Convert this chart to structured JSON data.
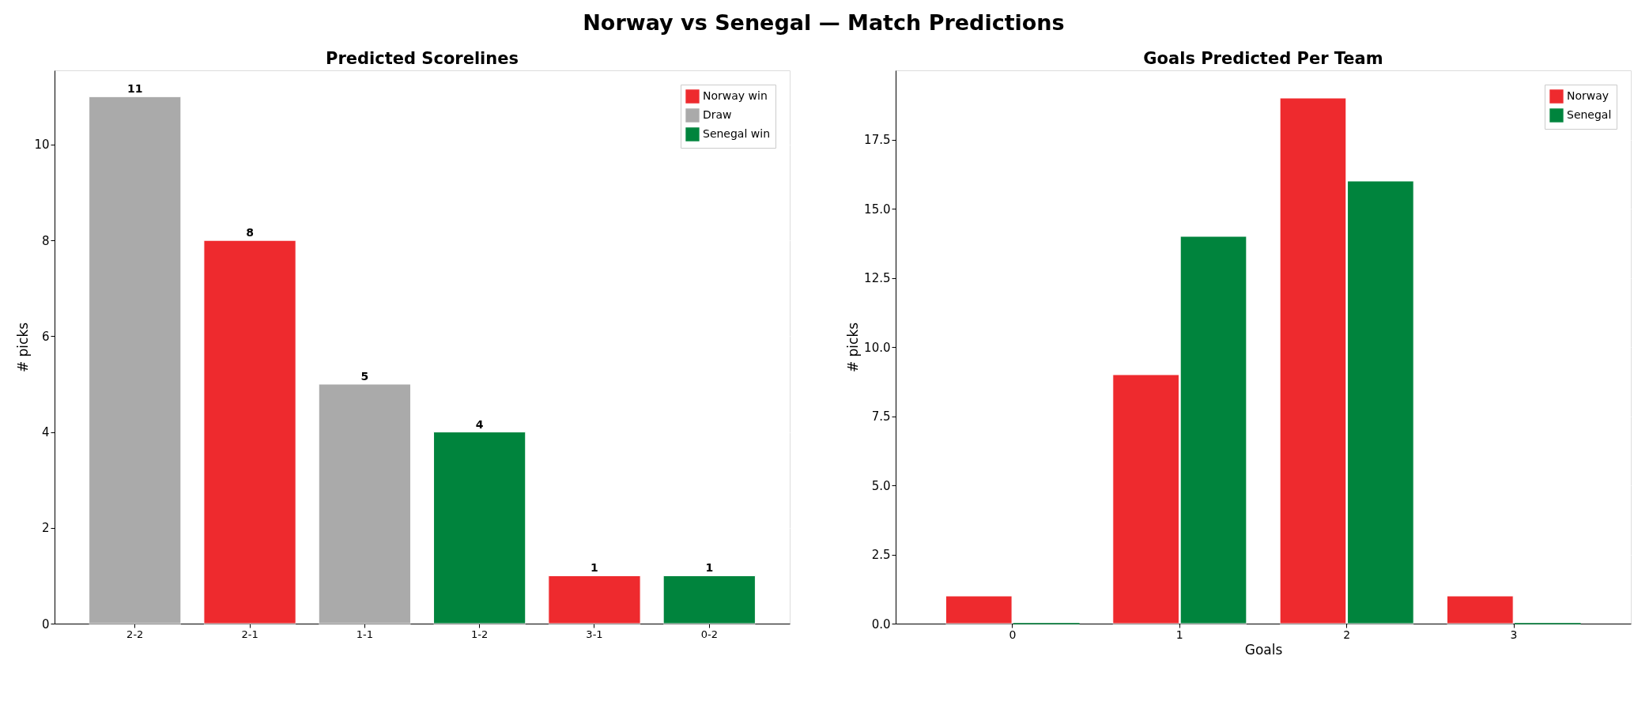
{
  "chart_data": [
    {
      "type": "bar",
      "title": "Predicted Scorelines",
      "annotations": [
        "Norway vs Senegal  —  Match Predictions"
      ],
      "ylabel": "# picks",
      "categories": [
        "2-2",
        "2-1",
        "1-1",
        "1-2",
        "3-1",
        "0-2"
      ],
      "series": [
        {
          "name": "Norway win",
          "color": "#ee2a2e",
          "values": [
            null,
            8,
            null,
            null,
            1,
            null
          ]
        },
        {
          "name": "Draw",
          "color": "#aaaaaa",
          "values": [
            11,
            null,
            5,
            null,
            null,
            null
          ]
        },
        {
          "name": "Senegal win",
          "color": "#00843d",
          "values": [
            null,
            null,
            null,
            4,
            null,
            1
          ]
        }
      ],
      "ylim": [
        0,
        11.55
      ],
      "yticks": [
        0,
        2,
        4,
        6,
        8,
        10
      ],
      "grid": "y",
      "legend": "top right",
      "data_labels": true
    },
    {
      "type": "bar",
      "title": "Goals Predicted Per Team",
      "xlabel": "Goals",
      "ylabel": "# picks",
      "categories": [
        "0",
        "1",
        "2",
        "3"
      ],
      "series": [
        {
          "name": "Norway",
          "color": "#ee2a2e",
          "values": [
            1,
            9,
            19,
            1
          ]
        },
        {
          "name": "Senegal",
          "color": "#00843d",
          "values": [
            0,
            14,
            16,
            0
          ]
        }
      ],
      "ylim": [
        0,
        20
      ],
      "yticks": [
        {
          "value": 0,
          "label": "0.0"
        },
        {
          "value": 2.5,
          "label": "2.5"
        },
        {
          "value": 5,
          "label": "5.0"
        },
        {
          "value": 7.5,
          "label": "7.5"
        },
        {
          "value": 10,
          "label": "10.0"
        },
        {
          "value": 12.5,
          "label": "12.5"
        },
        {
          "value": 15,
          "label": "15.0"
        },
        {
          "value": 17.5,
          "label": "17.5"
        }
      ],
      "grid": "y",
      "legend": "top right"
    }
  ]
}
